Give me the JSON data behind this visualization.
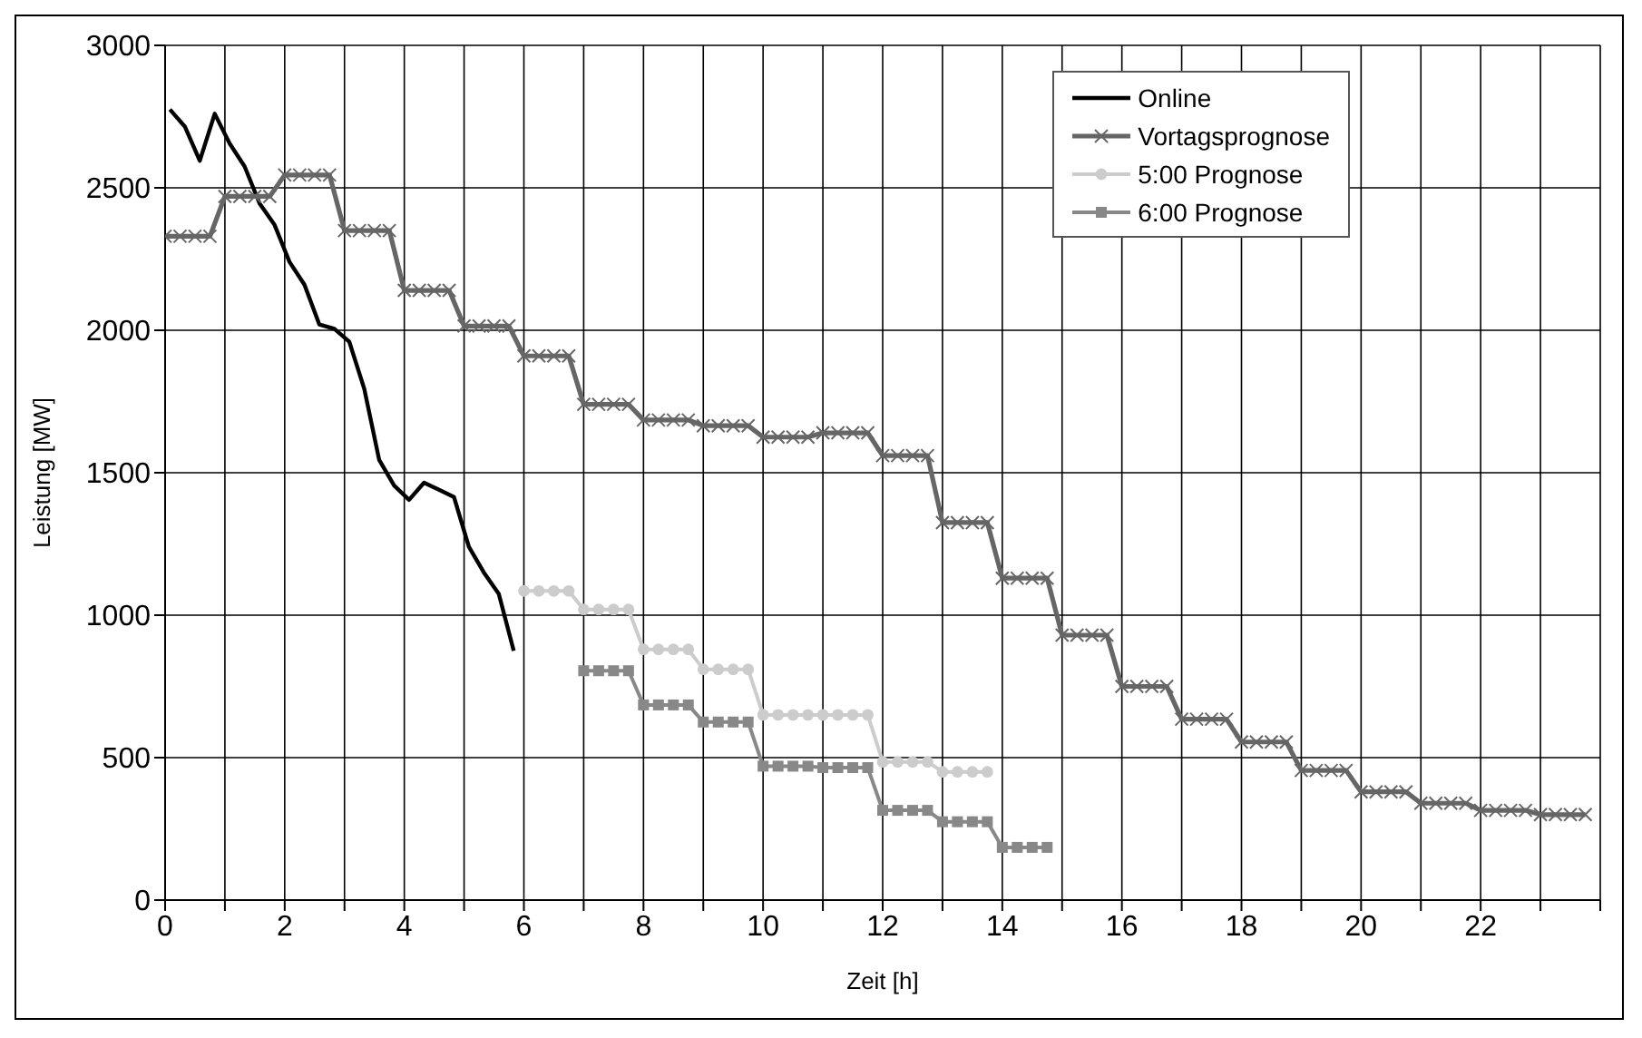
{
  "chart_data": {
    "type": "line",
    "xlabel": "Zeit [h]",
    "ylabel": "Leistung [MW]",
    "xlim": [
      0,
      24
    ],
    "ylim": [
      0,
      3000
    ],
    "yticks": [
      0,
      500,
      1000,
      1500,
      2000,
      2500,
      3000
    ],
    "xticks": [
      0,
      {
        "value": 1,
        "label": null
      },
      2,
      {
        "value": 3,
        "label": null
      },
      4,
      {
        "value": 5,
        "label": null
      },
      6,
      {
        "value": 7,
        "label": null
      },
      8,
      {
        "value": 9,
        "label": null
      },
      10,
      {
        "value": 11,
        "label": null
      },
      12,
      {
        "value": 13,
        "label": null
      },
      14,
      {
        "value": 15,
        "label": null
      },
      16,
      {
        "value": 17,
        "label": null
      },
      18,
      {
        "value": 19,
        "label": null
      },
      20,
      {
        "value": 21,
        "label": null
      },
      22,
      {
        "value": 23,
        "label": null
      },
      {
        "value": 24,
        "label": null
      }
    ],
    "grid": true,
    "legend": "top right",
    "series": [
      {
        "name": "Online",
        "color": "#000000",
        "marker": "none",
        "x": [
          0.08,
          0.33,
          0.58,
          0.83,
          1.08,
          1.33,
          1.58,
          1.83,
          2.08,
          2.33,
          2.58,
          2.83,
          3.08,
          3.33,
          3.58,
          3.83,
          4.08,
          4.33,
          4.58,
          4.83,
          5.08,
          5.33,
          5.58,
          5.83
        ],
        "values": [
          2775,
          2715,
          2595,
          2760,
          2655,
          2575,
          2445,
          2370,
          2240,
          2160,
          2020,
          2005,
          1960,
          1795,
          1545,
          1455,
          1405,
          1465,
          1440,
          1415,
          1240,
          1150,
          1075,
          875
        ]
      },
      {
        "name": "Vortagsprognose",
        "color": "#666666",
        "marker": "cross",
        "x": [
          0,
          0.25,
          0.5,
          0.75,
          1,
          1.25,
          1.5,
          1.75,
          2,
          2.25,
          2.5,
          2.75,
          3,
          3.25,
          3.5,
          3.75,
          4,
          4.25,
          4.5,
          4.75,
          5,
          5.25,
          5.5,
          5.75,
          6,
          6.25,
          6.5,
          6.75,
          7,
          7.25,
          7.5,
          7.75,
          8,
          8.25,
          8.5,
          8.75,
          9,
          9.25,
          9.5,
          9.75,
          10,
          10.25,
          10.5,
          10.75,
          11,
          11.25,
          11.5,
          11.75,
          12,
          12.25,
          12.5,
          12.75,
          13,
          13.25,
          13.5,
          13.75,
          14,
          14.25,
          14.5,
          14.75,
          15,
          15.25,
          15.5,
          15.75,
          16,
          16.25,
          16.5,
          16.75,
          17,
          17.25,
          17.5,
          17.75,
          18,
          18.25,
          18.5,
          18.75,
          19,
          19.25,
          19.5,
          19.75,
          20,
          20.25,
          20.5,
          20.75,
          21,
          21.25,
          21.5,
          21.75,
          22,
          22.25,
          22.5,
          22.75,
          23,
          23.25,
          23.5,
          23.75
        ],
        "values": [
          2330,
          2330,
          2330,
          2330,
          2470,
          2470,
          2470,
          2470,
          2545,
          2545,
          2545,
          2545,
          2350,
          2350,
          2350,
          2350,
          2140,
          2140,
          2140,
          2140,
          2015,
          2015,
          2015,
          2015,
          1910,
          1910,
          1910,
          1910,
          1740,
          1740,
          1740,
          1740,
          1685,
          1685,
          1685,
          1685,
          1665,
          1665,
          1665,
          1665,
          1625,
          1625,
          1625,
          1625,
          1640,
          1640,
          1640,
          1640,
          1560,
          1560,
          1560,
          1560,
          1325,
          1325,
          1325,
          1325,
          1130,
          1130,
          1130,
          1130,
          930,
          930,
          930,
          930,
          750,
          750,
          750,
          750,
          635,
          635,
          635,
          635,
          555,
          555,
          555,
          555,
          455,
          455,
          455,
          455,
          380,
          380,
          380,
          380,
          340,
          340,
          340,
          340,
          315,
          315,
          315,
          315,
          300,
          300,
          300,
          300
        ]
      },
      {
        "name": "5:00 Prognose",
        "color": "#cccccc",
        "marker": "circle",
        "x": [
          6,
          6.25,
          6.5,
          6.75,
          7,
          7.25,
          7.5,
          7.75,
          8,
          8.25,
          8.5,
          8.75,
          9,
          9.25,
          9.5,
          9.75,
          10,
          10.25,
          10.5,
          10.75,
          11,
          11.25,
          11.5,
          11.75,
          12,
          12.25,
          12.5,
          12.75,
          13,
          13.25,
          13.5,
          13.75
        ],
        "values": [
          1085,
          1085,
          1085,
          1085,
          1020,
          1020,
          1020,
          1020,
          880,
          880,
          880,
          880,
          810,
          810,
          810,
          810,
          650,
          650,
          650,
          650,
          650,
          650,
          650,
          650,
          485,
          485,
          485,
          485,
          450,
          450,
          450,
          450
        ]
      },
      {
        "name": "6:00 Prognose",
        "color": "#888888",
        "marker": "square",
        "x": [
          7,
          7.25,
          7.5,
          7.75,
          8,
          8.25,
          8.5,
          8.75,
          9,
          9.25,
          9.5,
          9.75,
          10,
          10.25,
          10.5,
          10.75,
          11,
          11.25,
          11.5,
          11.75,
          12,
          12.25,
          12.5,
          12.75,
          13,
          13.25,
          13.5,
          13.75,
          14,
          14.25,
          14.5,
          14.75
        ],
        "values": [
          805,
          805,
          805,
          805,
          685,
          685,
          685,
          685,
          625,
          625,
          625,
          625,
          470,
          470,
          470,
          470,
          465,
          465,
          465,
          465,
          315,
          315,
          315,
          315,
          275,
          275,
          275,
          275,
          185,
          185,
          185,
          185
        ]
      }
    ]
  }
}
